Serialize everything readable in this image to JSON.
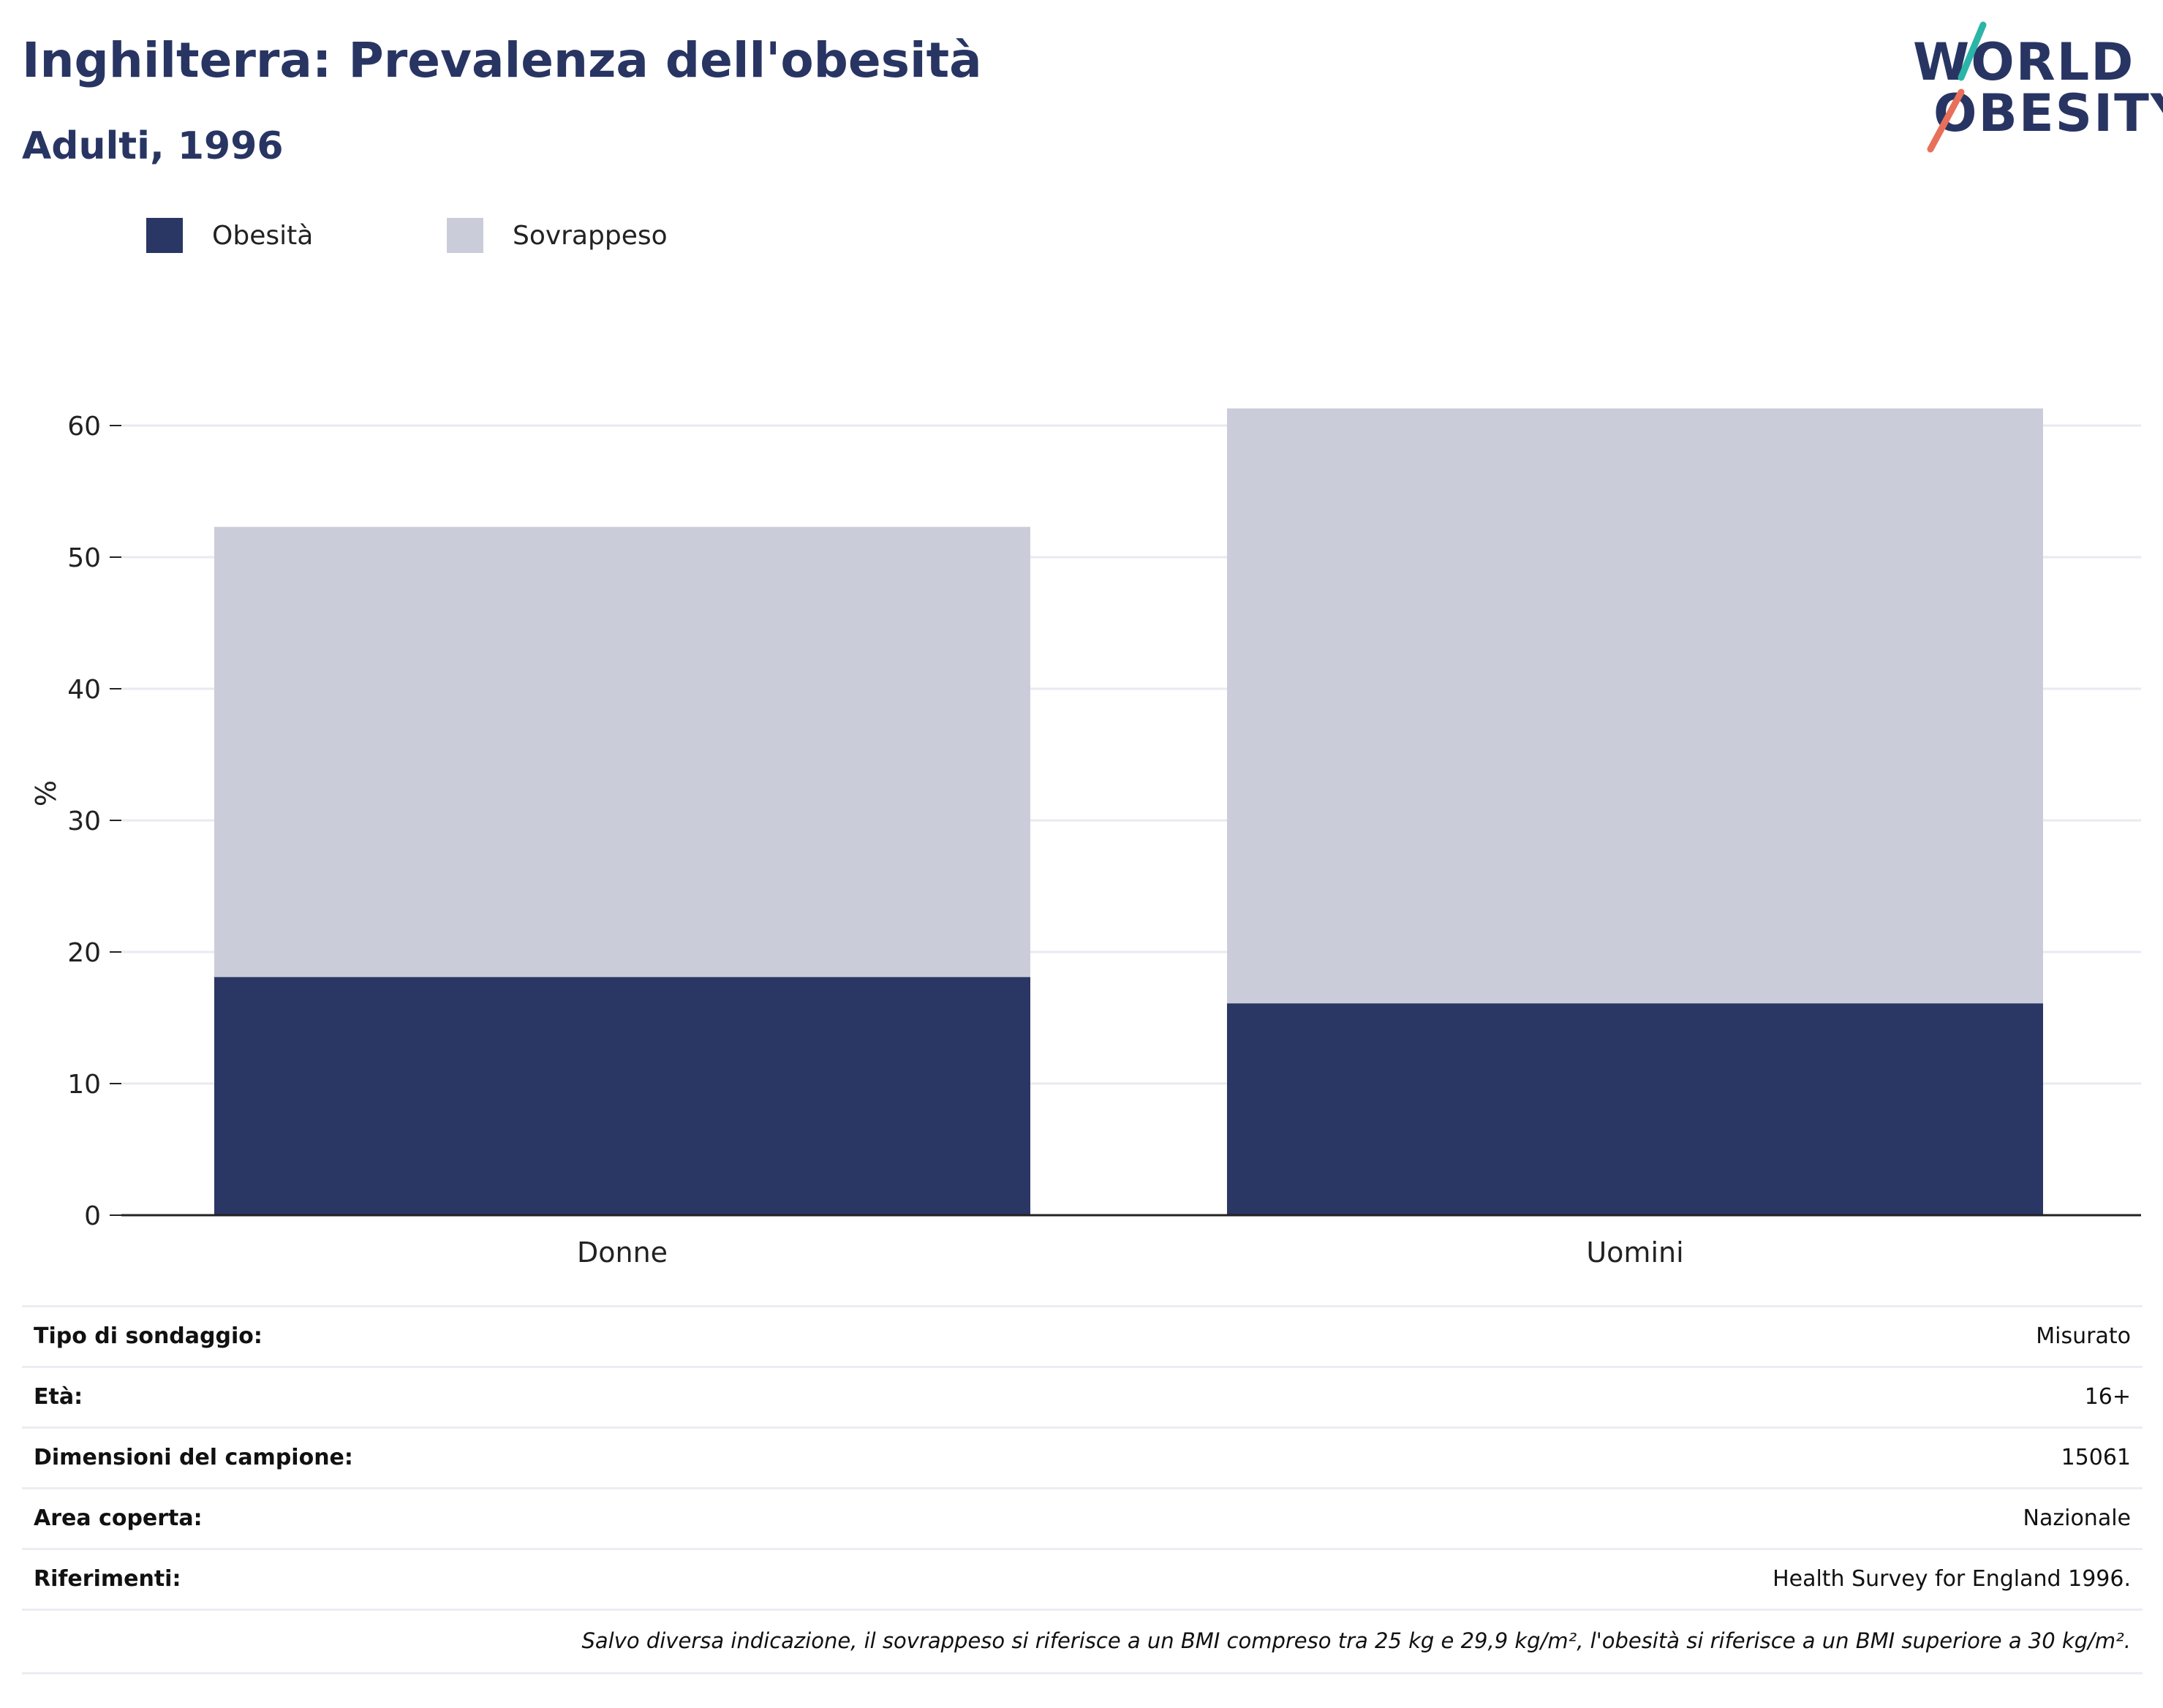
{
  "header": {
    "title": "Inghilterra: Prevalenza dell'obesità",
    "subtitle": "Adulti, 1996"
  },
  "logo": {
    "line1": "WORLD",
    "line2": "OBESITY",
    "colors": {
      "navy": "#283563",
      "teal": "#2bb5a8",
      "coral": "#e8705b"
    }
  },
  "chart_data": {
    "type": "bar",
    "stacked": true,
    "categories": [
      "Donne",
      "Uomini"
    ],
    "series": [
      {
        "name": "Obesità",
        "values": [
          18.1,
          16.1
        ],
        "color": "#2a3664"
      },
      {
        "name": "Sovrappeso",
        "values": [
          34.2,
          45.2
        ],
        "color": "#cacdd9"
      }
    ],
    "title": "Inghilterra: Prevalenza dell'obesità",
    "subtitle": "Adulti, 1996",
    "xlabel": "",
    "ylabel": "%",
    "ylim": [
      0,
      65
    ],
    "yticks": [
      0,
      10,
      20,
      30,
      40,
      50,
      60
    ],
    "grid": true,
    "legend_position": "top-left"
  },
  "info": {
    "rows": [
      {
        "label": "Tipo di sondaggio:",
        "value": "Misurato"
      },
      {
        "label": "Età:",
        "value": "16+"
      },
      {
        "label": "Dimensioni del campione:",
        "value": "15061"
      },
      {
        "label": "Area coperta:",
        "value": "Nazionale"
      },
      {
        "label": "Riferimenti:",
        "value": "Health Survey for England 1996."
      }
    ],
    "note": "Salvo diversa indicazione, il sovrappeso si riferisce a un BMI compreso tra 25 kg e 29,9 kg/m², l'obesità si riferisce a un BMI superiore a 30 kg/m²."
  }
}
